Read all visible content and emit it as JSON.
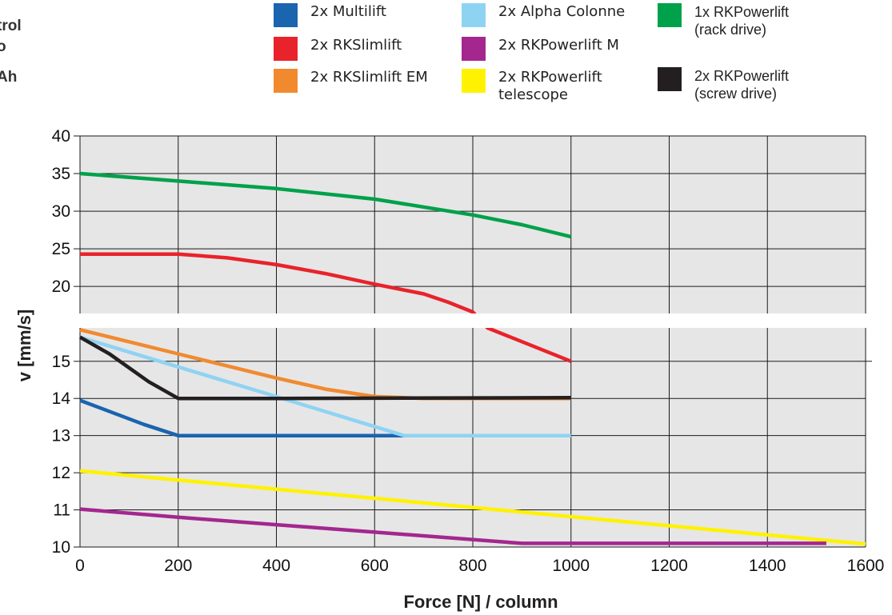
{
  "side_labels": [
    "trol",
    "o",
    "Ah"
  ],
  "chart_data": {
    "type": "line",
    "xlabel": "Force [N] / column",
    "ylabel": "v [mm/s]",
    "xlim": [
      0,
      1600
    ],
    "x_ticks": [
      0,
      200,
      400,
      600,
      800,
      1000,
      1200,
      1400,
      1600
    ],
    "y_ticks_upper": [
      20,
      25,
      30,
      35,
      40
    ],
    "y_ticks_lower": [
      10,
      11,
      12,
      13,
      14,
      15
    ],
    "y_axis_break": {
      "lower_range": [
        10,
        15.9
      ],
      "upper_range": [
        16.4,
        40
      ]
    },
    "grid": true,
    "background": "#e6e6e6",
    "legend_position": "top",
    "series": [
      {
        "key": "multilift",
        "name": "2x Multilift",
        "color": "#1a64b0",
        "points": [
          [
            0,
            13.95
          ],
          [
            70,
            13.6
          ],
          [
            130,
            13.3
          ],
          [
            200,
            13.0
          ],
          [
            1000,
            13.0
          ]
        ]
      },
      {
        "key": "rkslimlift",
        "name": "2x RKSlimlift",
        "color": "#e8232b",
        "points": [
          [
            0,
            24.3
          ],
          [
            200,
            24.3
          ],
          [
            300,
            23.8
          ],
          [
            400,
            22.9
          ],
          [
            500,
            21.7
          ],
          [
            600,
            20.3
          ],
          [
            700,
            19.0
          ],
          [
            750,
            17.9
          ],
          [
            800,
            16.6
          ],
          [
            830,
            15.9
          ],
          [
            1000,
            15.0
          ]
        ]
      },
      {
        "key": "rkslimlift_em",
        "name": "2x RKSlimlift EM",
        "color": "#f18a2f",
        "points": [
          [
            0,
            15.85
          ],
          [
            200,
            15.2
          ],
          [
            400,
            14.55
          ],
          [
            500,
            14.25
          ],
          [
            600,
            14.05
          ],
          [
            700,
            14.0
          ],
          [
            1000,
            14.0
          ]
        ]
      },
      {
        "key": "alpha_colonne",
        "name": "2x Alpha Colonne",
        "color": "#8fd3f3",
        "points": [
          [
            0,
            15.65
          ],
          [
            200,
            14.85
          ],
          [
            400,
            14.05
          ],
          [
            660,
            13.0
          ],
          [
            1000,
            13.0
          ]
        ]
      },
      {
        "key": "rkpowerlift_m",
        "name": "2x RKPowerlift M",
        "color": "#a3278f",
        "points": [
          [
            0,
            11.02
          ],
          [
            200,
            10.8
          ],
          [
            400,
            10.6
          ],
          [
            600,
            10.4
          ],
          [
            900,
            10.1
          ],
          [
            1520,
            10.1
          ]
        ]
      },
      {
        "key": "rkpowerlift_telescope",
        "name": "2x RKPowerlift\ntelescope",
        "color": "#fff200",
        "points": [
          [
            0,
            12.05
          ],
          [
            1600,
            10.08
          ]
        ]
      },
      {
        "key": "rkpowerlift_rack",
        "name": "1x RKPowerlift\n(rack drive)",
        "color": "#00a14b",
        "points": [
          [
            0,
            35.0
          ],
          [
            200,
            34.0
          ],
          [
            400,
            33.0
          ],
          [
            600,
            31.6
          ],
          [
            800,
            29.5
          ],
          [
            900,
            28.2
          ],
          [
            1000,
            26.6
          ]
        ]
      },
      {
        "key": "rkpowerlift_screw",
        "name": "2x RKPowerlift\n(screw drive)",
        "color": "#231f20",
        "points": [
          [
            0,
            15.65
          ],
          [
            60,
            15.2
          ],
          [
            140,
            14.45
          ],
          [
            200,
            14.0
          ],
          [
            400,
            14.0
          ],
          [
            1000,
            14.02
          ]
        ]
      }
    ]
  }
}
